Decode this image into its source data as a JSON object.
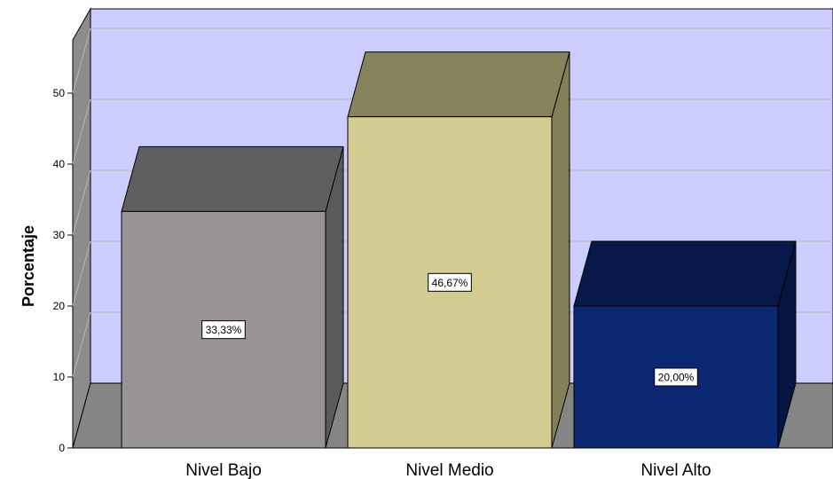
{
  "chart_data": {
    "type": "bar",
    "categories": [
      "Nivel Bajo",
      "Nivel Medio",
      "Nivel Alto"
    ],
    "values": [
      33.33,
      46.67,
      20.0
    ],
    "data_labels": [
      "33,33%",
      "46,67%",
      "20,00%"
    ],
    "ylabel": "Porcentaje",
    "ylim": [
      0,
      50
    ],
    "yticks": [
      "0",
      "10",
      "20",
      "30",
      "40",
      "50"
    ],
    "grid": true,
    "three_d": true,
    "colors": {
      "wall": "#ccccff",
      "side_wall": "#8c8c8c",
      "floor": "#858585",
      "bar_front": [
        "#989494",
        "#d2cc90",
        "#0c2872"
      ],
      "bar_top": [
        "#5f5f5f",
        "#86825c",
        "#071949"
      ],
      "bar_side": [
        "#5a5a5a",
        "#837f57",
        "#061640"
      ]
    }
  }
}
